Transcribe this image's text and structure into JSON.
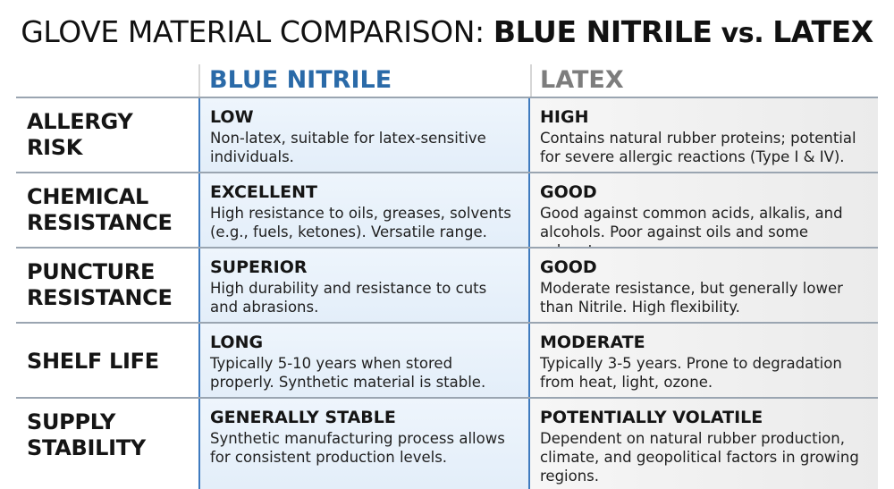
{
  "title": {
    "prefix": "GLOVE MATERIAL COMPARISON: ",
    "material_a": "BLUE NITRILE",
    "separator": " vs. ",
    "material_b": "LATEX"
  },
  "columns": {
    "nitrile": "BLUE NITRILE",
    "latex": "LATEX"
  },
  "colors": {
    "nitrile_accent": "#2a6aa8",
    "latex_accent": "#7d7d7d",
    "nitrile_cell_bg": "#e8f1fa",
    "latex_cell_bg": "#f0f0f0"
  },
  "rows": [
    {
      "label_line1": "ALLERGY",
      "label_line2": "RISK",
      "nitrile": {
        "rating": "LOW",
        "desc_line1": "Non-latex, suitable for latex-sensitive",
        "desc_line2": "individuals."
      },
      "latex": {
        "rating": "HIGH",
        "desc_line1": "Contains natural rubber proteins; potential",
        "desc_line2": "for severe allergic reactions (Type I & IV)."
      }
    },
    {
      "label_line1": "CHEMICAL",
      "label_line2": "RESISTANCE",
      "nitrile": {
        "rating": "EXCELLENT",
        "desc_line1": "High resistance to oils, greases, solvents",
        "desc_line2": "(e.g., fuels, ketones). Versatile range."
      },
      "latex": {
        "rating": "GOOD",
        "desc_line1": "Good against common acids, alkalis, and",
        "desc_line2": "alcohols. Poor against oils and some solvents."
      }
    },
    {
      "label_line1": "PUNCTURE",
      "label_line2": "RESISTANCE",
      "nitrile": {
        "rating": "SUPERIOR",
        "desc_line1": "High durability and resistance to cuts",
        "desc_line2": "and abrasions."
      },
      "latex": {
        "rating": "GOOD",
        "desc_line1": "Moderate resistance, but generally lower",
        "desc_line2": "than Nitrile. High flexibility."
      }
    },
    {
      "label_line1": "SHELF LIFE",
      "label_line2": "",
      "nitrile": {
        "rating": "LONG",
        "desc_line1": "Typically 5-10 years when stored",
        "desc_line2": "properly. Synthetic material is stable."
      },
      "latex": {
        "rating": "MODERATE",
        "desc_line1": "Typically 3-5 years. Prone to degradation",
        "desc_line2": "from heat, light, ozone."
      }
    },
    {
      "label_line1": "SUPPLY",
      "label_line2": "STABILITY",
      "nitrile": {
        "rating": "GENERALLY STABLE",
        "desc_line1": "Synthetic manufacturing process allows",
        "desc_line2": "for consistent production levels."
      },
      "latex": {
        "rating": "POTENTIALLY VOLATILE",
        "desc_line1": "Dependent on natural rubber production,",
        "desc_line2": "climate, and geopolitical factors in growing",
        "desc_line3": "regions."
      }
    }
  ]
}
